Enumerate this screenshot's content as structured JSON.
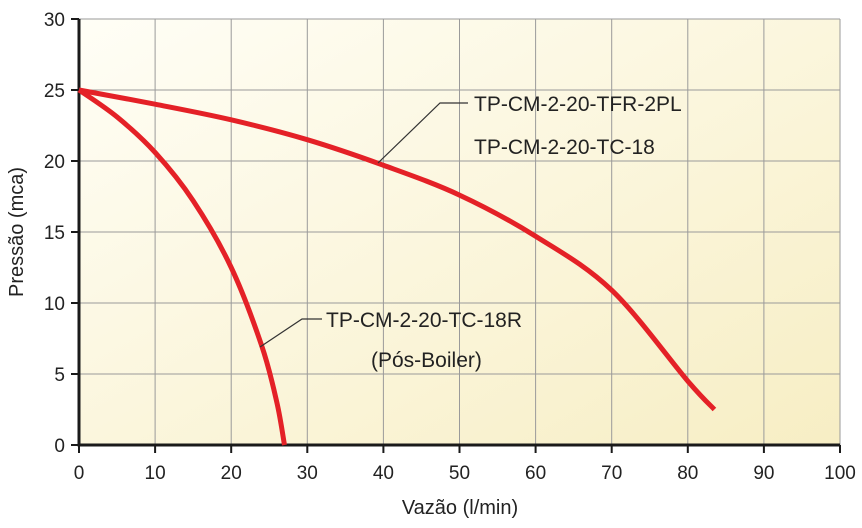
{
  "chart_data": {
    "type": "line",
    "xlabel": "Vazão (l/min)",
    "ylabel": "Pressão (mca)",
    "xlim": [
      0,
      100
    ],
    "ylim": [
      0,
      30
    ],
    "x_ticks": [
      "0",
      "10",
      "20",
      "30",
      "40",
      "50",
      "60",
      "70",
      "80",
      "90",
      "100"
    ],
    "y_ticks": [
      "0",
      "5",
      "10",
      "15",
      "20",
      "25",
      "30"
    ],
    "grid": true,
    "colors": {
      "plot_background_start": "#fffef6",
      "plot_background_end": "#f7eec4",
      "grid": "#9a9a9a",
      "axis": "#1a1a1a",
      "series": "#e42127",
      "leader": "#333333"
    },
    "series": [
      {
        "x": [
          0,
          10,
          20,
          30,
          40,
          50,
          60,
          70,
          80,
          83.5
        ],
        "y": [
          25,
          24,
          22.9,
          21.5,
          19.7,
          17.6,
          14.7,
          10.9,
          4.5,
          2.5
        ],
        "label_lines": [
          "TP-CM-2-20-TFR-2PL",
          "TP-CM-2-20-TC-18"
        ]
      },
      {
        "x": [
          0,
          5,
          10,
          15,
          20,
          24,
          26,
          27
        ],
        "y": [
          25,
          23.1,
          20.6,
          17.2,
          12.5,
          7,
          3,
          0
        ],
        "label_lines": [
          "TP-CM-2-20-TC-18R",
          "(Pós-Boiler)"
        ]
      }
    ]
  }
}
